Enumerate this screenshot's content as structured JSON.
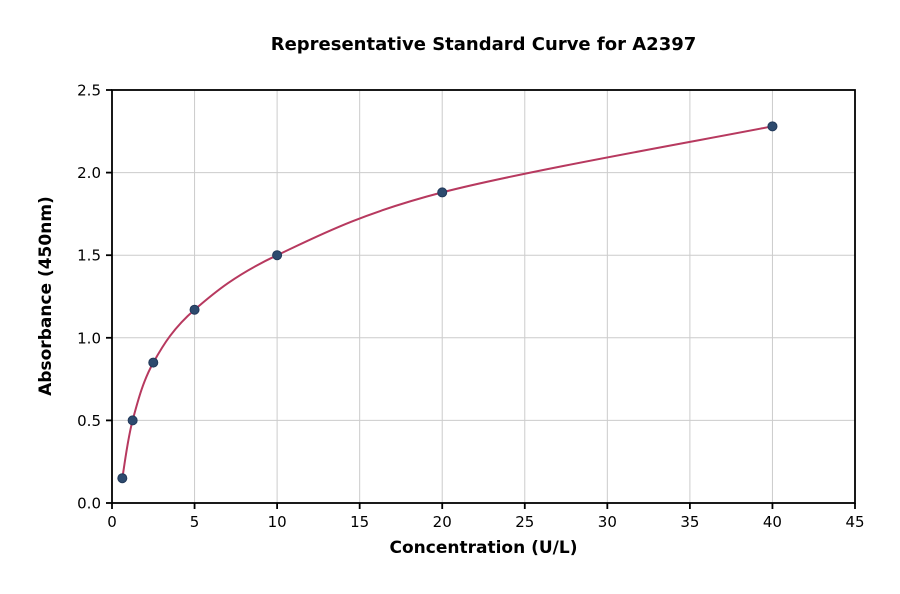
{
  "figure": {
    "background": "#ffffff"
  },
  "chart_data": {
    "type": "scatter",
    "title": "Representative Standard Curve for A2397",
    "xlabel": "Concentration (U/L)",
    "ylabel": "Absorbance (450nm)",
    "xlim": [
      0,
      45
    ],
    "ylim": [
      0,
      2.5
    ],
    "xticks": [
      "0",
      "5",
      "10",
      "15",
      "20",
      "25",
      "30",
      "35",
      "40",
      "45"
    ],
    "yticks": [
      "0.0",
      "0.5",
      "1.0",
      "1.5",
      "2.0",
      "2.5"
    ],
    "grid": true,
    "legend": "none",
    "x": [
      0.625,
      1.25,
      2.5,
      5,
      10,
      20,
      40
    ],
    "y": [
      0.15,
      0.5,
      0.85,
      1.17,
      1.5,
      1.88,
      2.28
    ],
    "series": [
      {
        "name": "fitted-curve",
        "type": "line",
        "color": "#b7395f",
        "line_width": 2
      },
      {
        "name": "standard-points",
        "type": "scatter",
        "color": "#2d4a6e",
        "marker_radius": 4.5
      }
    ],
    "colors": {
      "curve": "#b7395f",
      "marker": "#2d4a6e",
      "marker_edge": "#22395a",
      "grid": "#cccccc",
      "axis": "#000000",
      "text": "#000000"
    }
  }
}
